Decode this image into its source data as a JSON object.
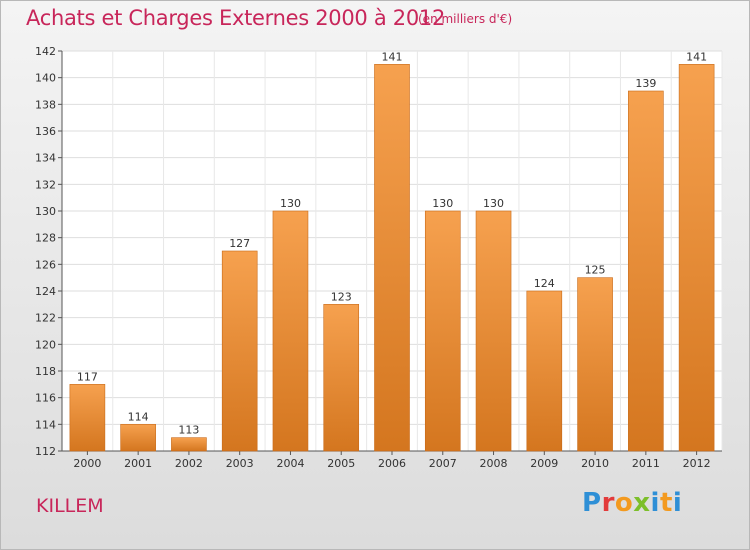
{
  "title": "Achats et Charges Externes 2000 à 2012",
  "subtitle": "(en milliers d'€)",
  "commune": "KILLEM",
  "logo": {
    "letters": [
      "P",
      "r",
      "o",
      "x",
      "i",
      "t",
      "i"
    ]
  },
  "colors": {
    "text_accent": "#c8265a",
    "bar_light": "#f6a14f",
    "bar_dark": "#d4761f"
  },
  "chart_data": {
    "type": "bar",
    "categories": [
      "2000",
      "2001",
      "2002",
      "2003",
      "2004",
      "2005",
      "2006",
      "2007",
      "2008",
      "2009",
      "2010",
      "2011",
      "2012"
    ],
    "values": [
      117,
      114,
      113,
      127,
      130,
      123,
      141,
      130,
      130,
      124,
      125,
      139,
      141
    ],
    "ylim": [
      112,
      142
    ],
    "yticks": [
      112,
      114,
      116,
      118,
      120,
      122,
      124,
      126,
      128,
      130,
      132,
      134,
      136,
      138,
      140,
      142
    ],
    "grid": true,
    "data_labels": true
  }
}
